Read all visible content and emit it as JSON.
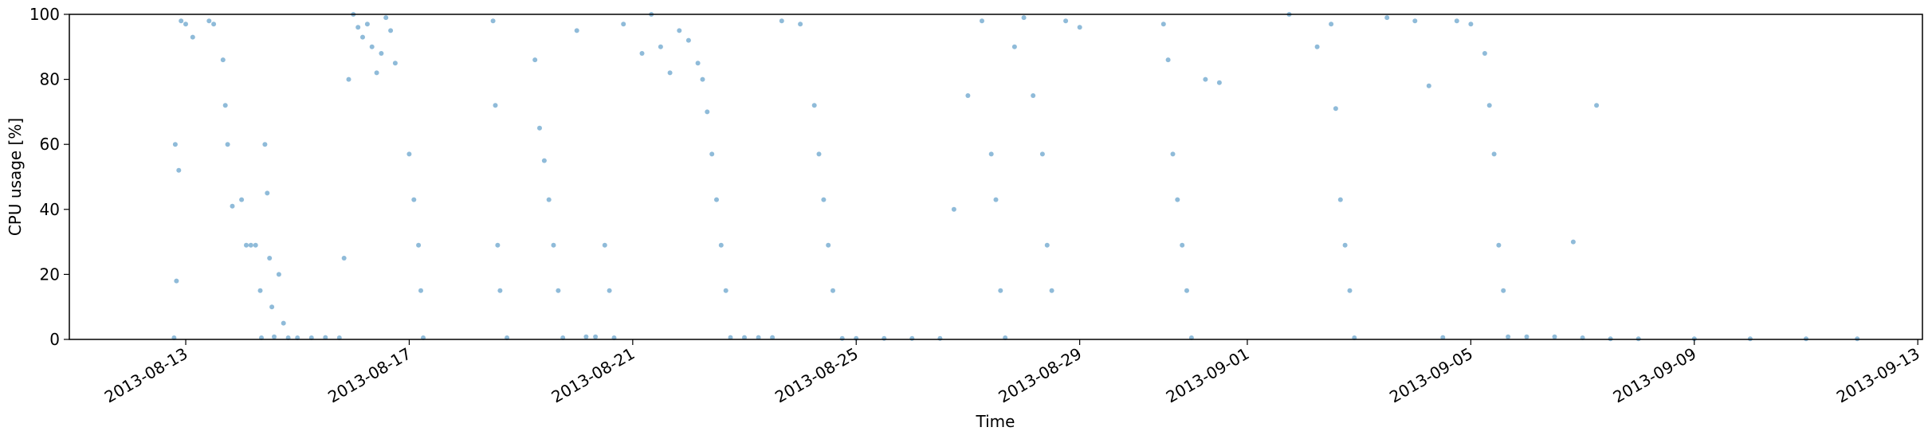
{
  "chart_data": {
    "type": "scatter",
    "title": "",
    "xlabel": "Time",
    "ylabel": "CPU usage [%]",
    "xlim": [
      "2013-08-10T22:00",
      "2013-09-13T02:00"
    ],
    "ylim": [
      0,
      100
    ],
    "x_ticks": [
      "2013-08-13",
      "2013-08-17",
      "2013-08-21",
      "2013-08-25",
      "2013-08-29",
      "2013-09-01",
      "2013-09-05",
      "2013-09-09",
      "2013-09-13"
    ],
    "y_ticks": [
      0,
      20,
      40,
      60,
      80,
      100
    ],
    "grid": false,
    "legend": "none",
    "marker_color": "#1f77b4",
    "series": [
      {
        "points": [
          [
            "2013-08-12T19:00",
            0.5
          ],
          [
            "2013-08-12T20:00",
            18
          ],
          [
            "2013-08-12T19:30",
            60
          ],
          [
            "2013-08-12T21:00",
            52
          ],
          [
            "2013-08-12T22:00",
            98
          ],
          [
            "2013-08-13T00:00",
            97
          ],
          [
            "2013-08-13T03:00",
            93
          ],
          [
            "2013-08-13T10:00",
            98
          ],
          [
            "2013-08-13T12:00",
            97
          ],
          [
            "2013-08-13T16:00",
            86
          ],
          [
            "2013-08-13T17:00",
            72
          ],
          [
            "2013-08-13T18:00",
            60
          ],
          [
            "2013-08-13T20:00",
            41
          ],
          [
            "2013-08-14T00:00",
            43
          ],
          [
            "2013-08-14T02:00",
            29
          ],
          [
            "2013-08-14T04:00",
            29
          ],
          [
            "2013-08-14T06:00",
            29
          ],
          [
            "2013-08-14T08:00",
            15
          ],
          [
            "2013-08-14T08:30",
            0.5
          ],
          [
            "2013-08-14T10:00",
            60
          ],
          [
            "2013-08-14T11:00",
            45
          ],
          [
            "2013-08-14T12:00",
            25
          ],
          [
            "2013-08-14T13:00",
            10
          ],
          [
            "2013-08-14T14:00",
            0.8
          ],
          [
            "2013-08-14T16:00",
            20
          ],
          [
            "2013-08-14T18:00",
            5
          ],
          [
            "2013-08-14T20:00",
            0.5
          ],
          [
            "2013-08-15T00:00",
            0.5
          ],
          [
            "2013-08-15T06:00",
            0.5
          ],
          [
            "2013-08-15T12:00",
            0.6
          ],
          [
            "2013-08-15T18:00",
            0.5
          ],
          [
            "2013-08-15T20:00",
            25
          ],
          [
            "2013-08-15T22:00",
            80
          ],
          [
            "2013-08-16T00:00",
            100
          ],
          [
            "2013-08-16T02:00",
            96
          ],
          [
            "2013-08-16T04:00",
            93
          ],
          [
            "2013-08-16T06:00",
            97
          ],
          [
            "2013-08-16T08:00",
            90
          ],
          [
            "2013-08-16T10:00",
            82
          ],
          [
            "2013-08-16T12:00",
            88
          ],
          [
            "2013-08-16T14:00",
            99
          ],
          [
            "2013-08-16T16:00",
            95
          ],
          [
            "2013-08-16T18:00",
            85
          ],
          [
            "2013-08-17T00:00",
            57
          ],
          [
            "2013-08-17T02:00",
            43
          ],
          [
            "2013-08-17T04:00",
            29
          ],
          [
            "2013-08-17T05:00",
            15
          ],
          [
            "2013-08-17T06:00",
            0.5
          ],
          [
            "2013-08-18T12:00",
            98
          ],
          [
            "2013-08-18T13:00",
            72
          ],
          [
            "2013-08-18T14:00",
            29
          ],
          [
            "2013-08-18T15:00",
            15
          ],
          [
            "2013-08-18T18:00",
            0.5
          ],
          [
            "2013-08-19T06:00",
            86
          ],
          [
            "2013-08-19T08:00",
            65
          ],
          [
            "2013-08-19T10:00",
            55
          ],
          [
            "2013-08-19T12:00",
            43
          ],
          [
            "2013-08-19T14:00",
            29
          ],
          [
            "2013-08-19T16:00",
            15
          ],
          [
            "2013-08-19T18:00",
            0.5
          ],
          [
            "2013-08-20T00:00",
            95
          ],
          [
            "2013-08-20T04:00",
            0.8
          ],
          [
            "2013-08-20T08:00",
            0.8
          ],
          [
            "2013-08-20T12:00",
            29
          ],
          [
            "2013-08-20T14:00",
            15
          ],
          [
            "2013-08-20T16:00",
            0.5
          ],
          [
            "2013-08-20T20:00",
            97
          ],
          [
            "2013-08-21T04:00",
            88
          ],
          [
            "2013-08-21T08:00",
            100
          ],
          [
            "2013-08-21T12:00",
            90
          ],
          [
            "2013-08-21T16:00",
            82
          ],
          [
            "2013-08-21T20:00",
            95
          ],
          [
            "2013-08-22T00:00",
            92
          ],
          [
            "2013-08-22T04:00",
            85
          ],
          [
            "2013-08-22T06:00",
            80
          ],
          [
            "2013-08-22T08:00",
            70
          ],
          [
            "2013-08-22T10:00",
            57
          ],
          [
            "2013-08-22T12:00",
            43
          ],
          [
            "2013-08-22T14:00",
            29
          ],
          [
            "2013-08-22T16:00",
            15
          ],
          [
            "2013-08-22T18:00",
            0.6
          ],
          [
            "2013-08-23T00:00",
            0.6
          ],
          [
            "2013-08-23T06:00",
            0.6
          ],
          [
            "2013-08-23T12:00",
            0.6
          ],
          [
            "2013-08-23T16:00",
            98
          ],
          [
            "2013-08-24T00:00",
            97
          ],
          [
            "2013-08-24T06:00",
            72
          ],
          [
            "2013-08-24T08:00",
            57
          ],
          [
            "2013-08-24T10:00",
            43
          ],
          [
            "2013-08-24T12:00",
            29
          ],
          [
            "2013-08-24T14:00",
            15
          ],
          [
            "2013-08-24T18:00",
            0.3
          ],
          [
            "2013-08-25T00:00",
            0.3
          ],
          [
            "2013-08-25T12:00",
            0.3
          ],
          [
            "2013-08-26T00:00",
            0.3
          ],
          [
            "2013-08-26T12:00",
            0.3
          ],
          [
            "2013-08-26T18:00",
            40
          ],
          [
            "2013-08-27T00:00",
            75
          ],
          [
            "2013-08-27T06:00",
            98
          ],
          [
            "2013-08-27T10:00",
            57
          ],
          [
            "2013-08-27T12:00",
            43
          ],
          [
            "2013-08-27T14:00",
            15
          ],
          [
            "2013-08-27T16:00",
            0.5
          ],
          [
            "2013-08-27T20:00",
            90
          ],
          [
            "2013-08-28T00:00",
            99
          ],
          [
            "2013-08-28T04:00",
            75
          ],
          [
            "2013-08-28T08:00",
            57
          ],
          [
            "2013-08-28T10:00",
            29
          ],
          [
            "2013-08-28T12:00",
            15
          ],
          [
            "2013-08-28T18:00",
            98
          ],
          [
            "2013-08-29T00:00",
            96
          ],
          [
            "2013-08-30T12:00",
            97
          ],
          [
            "2013-08-30T14:00",
            86
          ],
          [
            "2013-08-30T16:00",
            57
          ],
          [
            "2013-08-30T18:00",
            43
          ],
          [
            "2013-08-30T20:00",
            29
          ],
          [
            "2013-08-30T22:00",
            15
          ],
          [
            "2013-08-31T00:00",
            0.5
          ],
          [
            "2013-08-31T06:00",
            80
          ],
          [
            "2013-08-31T12:00",
            79
          ],
          [
            "2013-09-01T18:00",
            100
          ],
          [
            "2013-09-02T06:00",
            90
          ],
          [
            "2013-09-02T12:00",
            97
          ],
          [
            "2013-09-02T14:00",
            71
          ],
          [
            "2013-09-02T16:00",
            43
          ],
          [
            "2013-09-02T18:00",
            29
          ],
          [
            "2013-09-02T20:00",
            15
          ],
          [
            "2013-09-02T22:00",
            0.5
          ],
          [
            "2013-09-03T12:00",
            99
          ],
          [
            "2013-09-04T00:00",
            98
          ],
          [
            "2013-09-04T06:00",
            78
          ],
          [
            "2013-09-04T12:00",
            0.6
          ],
          [
            "2013-09-04T18:00",
            98
          ],
          [
            "2013-09-05T00:00",
            97
          ],
          [
            "2013-09-05T06:00",
            88
          ],
          [
            "2013-09-05T08:00",
            72
          ],
          [
            "2013-09-05T10:00",
            57
          ],
          [
            "2013-09-05T12:00",
            29
          ],
          [
            "2013-09-05T14:00",
            15
          ],
          [
            "2013-09-05T16:00",
            0.8
          ],
          [
            "2013-09-06T00:00",
            0.8
          ],
          [
            "2013-09-06T12:00",
            0.8
          ],
          [
            "2013-09-06T20:00",
            30
          ],
          [
            "2013-09-07T00:00",
            0.5
          ],
          [
            "2013-09-07T06:00",
            72
          ],
          [
            "2013-09-07T12:00",
            0.2
          ],
          [
            "2013-09-08T00:00",
            0.2
          ],
          [
            "2013-09-09T00:00",
            0.2
          ],
          [
            "2013-09-10T00:00",
            0.2
          ],
          [
            "2013-09-11T00:00",
            0.2
          ],
          [
            "2013-09-11T22:00",
            0.2
          ]
        ]
      }
    ]
  }
}
